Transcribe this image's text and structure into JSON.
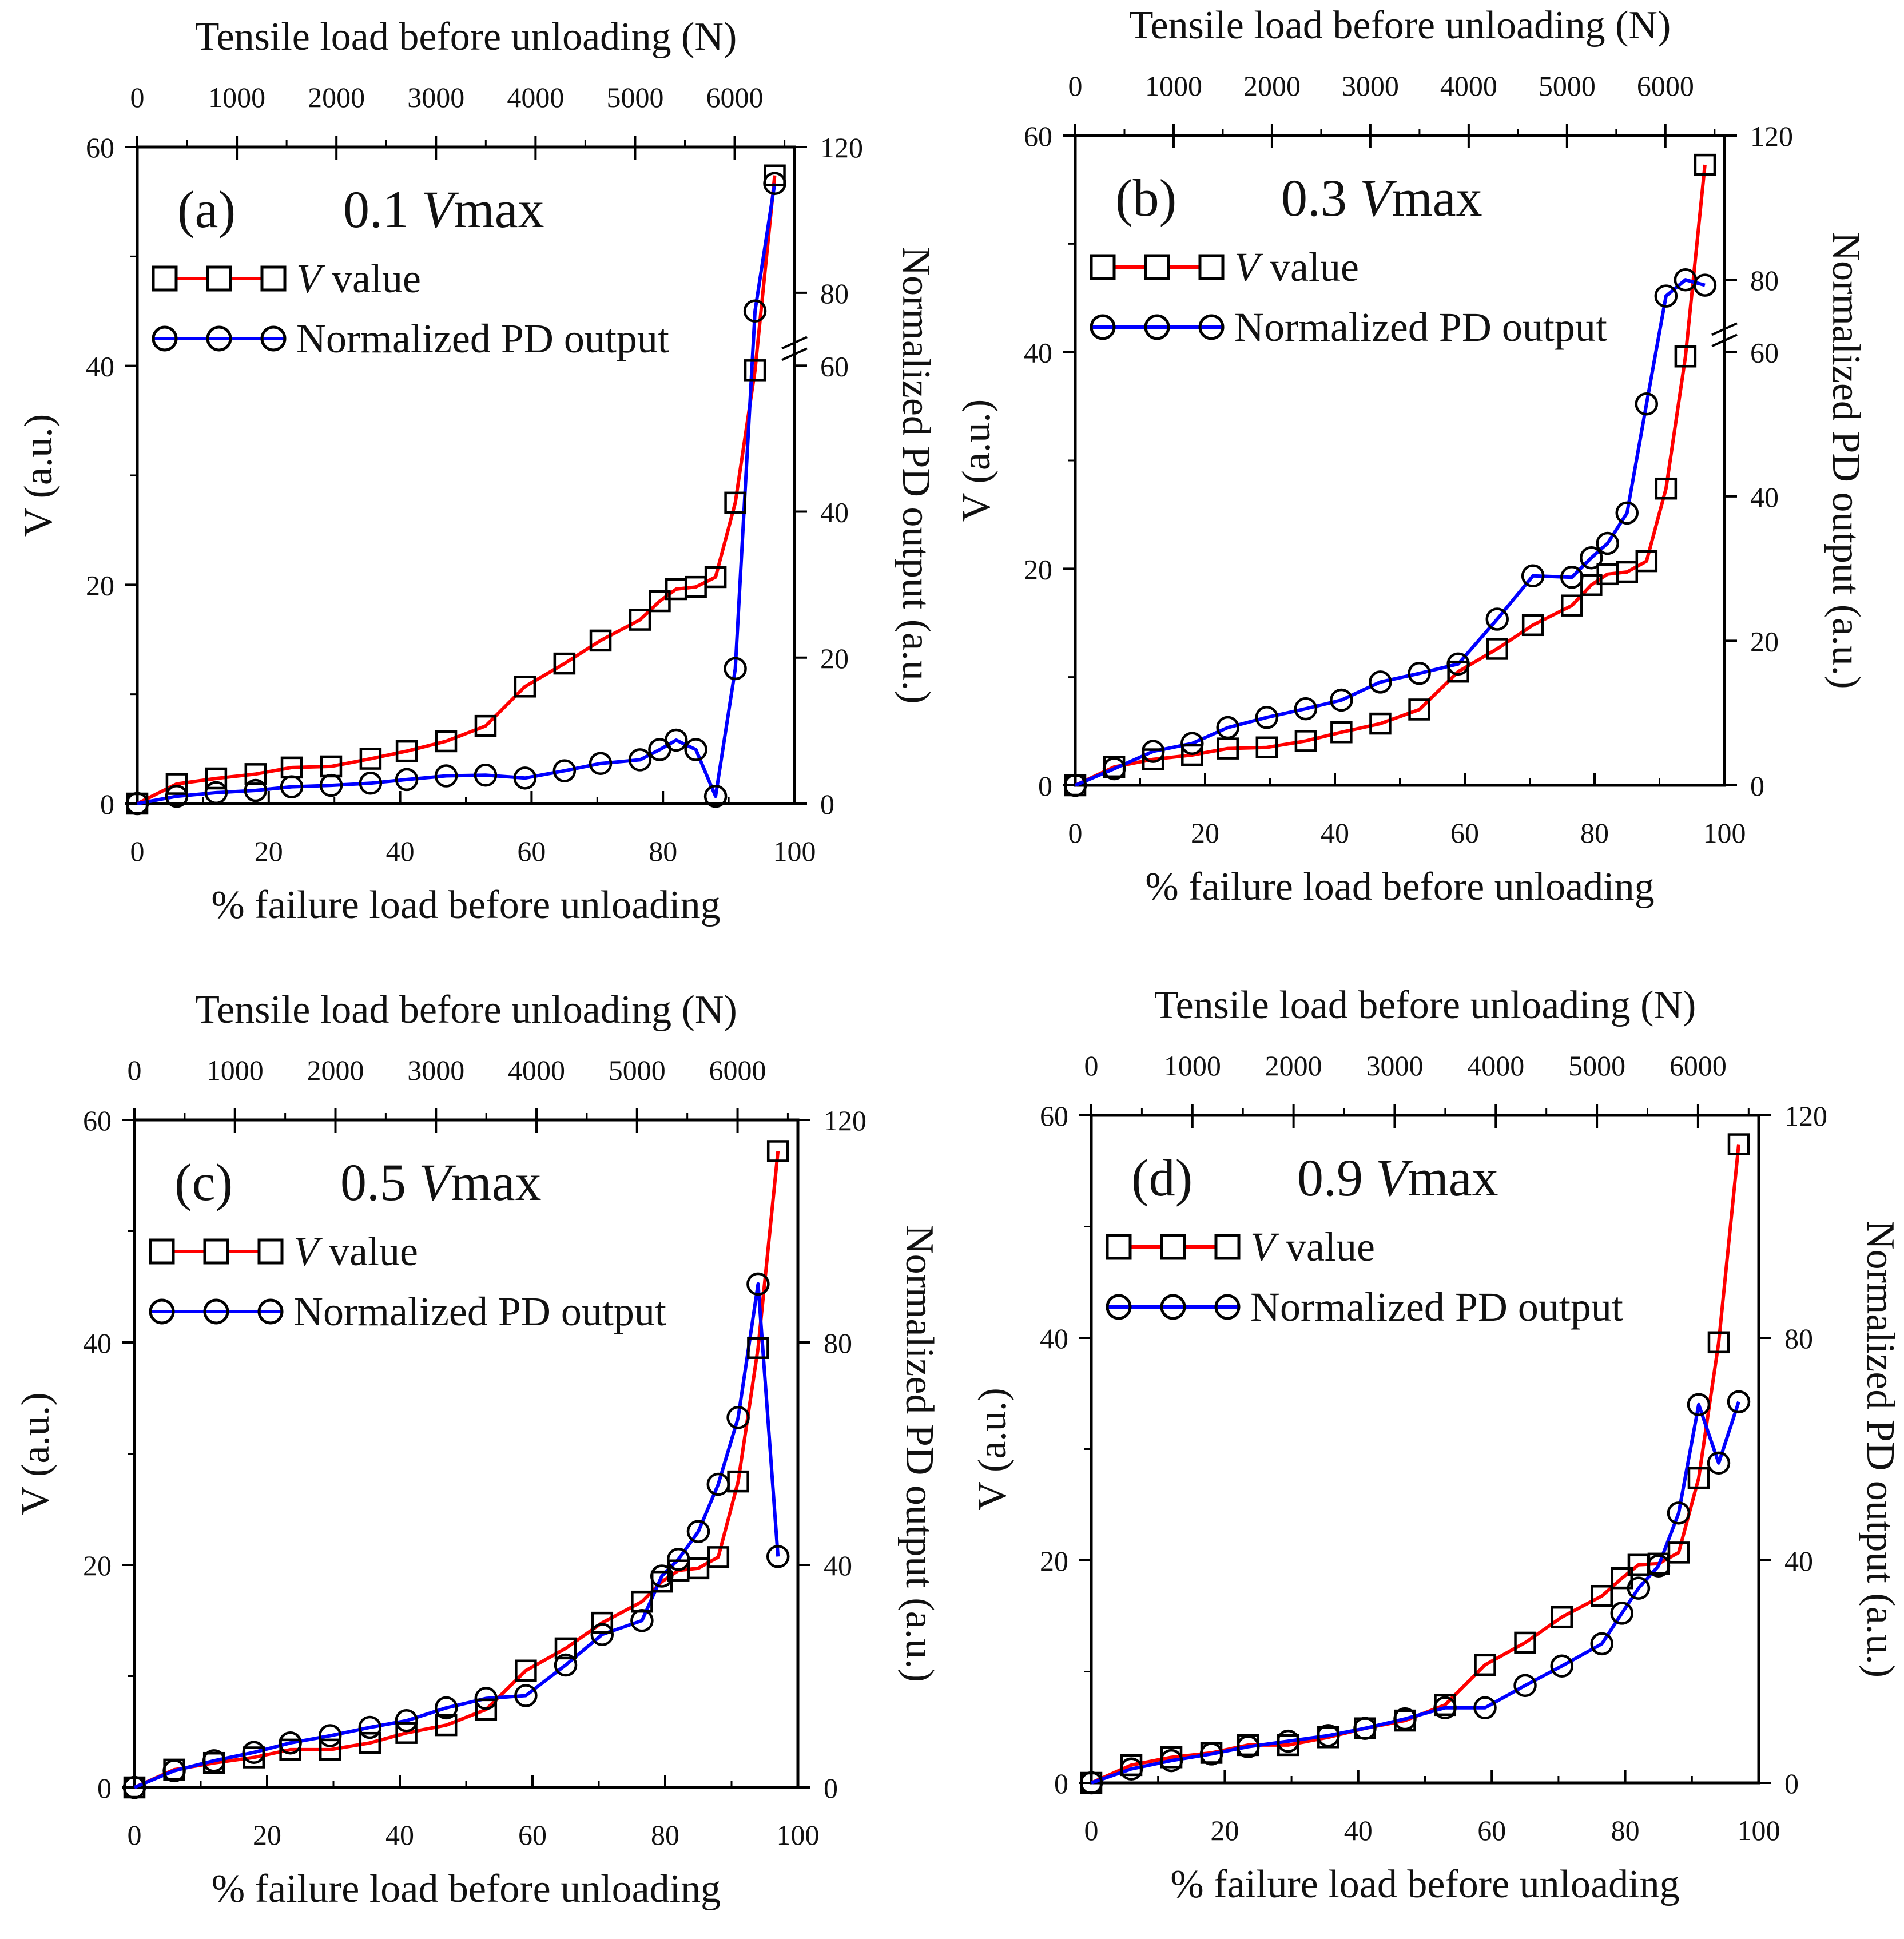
{
  "figure": {
    "name": "tensile-load-four-panel-figure"
  },
  "chart_data": [
    {
      "type": "line",
      "panel_label": "(a)",
      "condition": {
        "coef": "0.1",
        "symbol": "V",
        "sub": "max"
      },
      "top_axis": {
        "label": "Tensile load before unloading (N)",
        "ticks": [
          0,
          1000,
          2000,
          3000,
          4000,
          5000,
          6000
        ],
        "range": [
          0,
          6600
        ]
      },
      "xlabel": "% failure load before unloading",
      "ylabel": "V (a.u.)",
      "y2label": "Normalized PD output (a.u.)",
      "xlim": [
        0,
        100
      ],
      "xticks": [
        0,
        20,
        40,
        60,
        80,
        100
      ],
      "ylim": [
        0,
        60
      ],
      "yticks": [
        0,
        20,
        40,
        60
      ],
      "y2ticks": [
        0,
        20,
        40,
        60,
        80,
        120
      ],
      "y2_broken": true,
      "y2_lower_range": [
        0,
        60
      ],
      "y2_upper_range": [
        60,
        120
      ],
      "y2_break_frac": 0.667,
      "legend": {
        "items": [
          {
            "italic": "V",
            "text": " value"
          },
          {
            "italic": "",
            "text": "Normalized PD output"
          }
        ],
        "placement": "top-left"
      },
      "series": [
        {
          "name": "V value",
          "axis": "left",
          "color": "#ff0000",
          "marker": "square",
          "x": [
            0,
            6,
            12,
            18,
            23.5,
            29.5,
            35.5,
            41,
            47,
            53,
            59,
            65,
            70.5,
            76.5,
            79.5,
            82,
            85,
            88,
            91,
            94,
            97
          ],
          "y": [
            0,
            1.8,
            2.3,
            2.7,
            3.3,
            3.4,
            4.1,
            4.8,
            5.7,
            7.1,
            10.7,
            12.8,
            14.9,
            16.8,
            18.5,
            19.6,
            19.8,
            20.7,
            27.5,
            39.6,
            57.4
          ]
        },
        {
          "name": "Normalized PD output",
          "axis": "right",
          "color": "#0000ff",
          "marker": "circle",
          "x": [
            0,
            6,
            12,
            18,
            23.5,
            29.5,
            35.5,
            41,
            47,
            53,
            59,
            65,
            70.5,
            76.5,
            79.5,
            82,
            85,
            88,
            91,
            94,
            97
          ],
          "y": [
            0,
            1,
            1.5,
            1.8,
            2.3,
            2.5,
            2.8,
            3.3,
            3.8,
            3.9,
            3.5,
            4.5,
            5.5,
            6,
            7.4,
            8.7,
            7.4,
            1,
            18.5,
            75,
            110
          ]
        }
      ]
    },
    {
      "type": "line",
      "panel_label": "(b)",
      "condition": {
        "coef": "0.3",
        "symbol": "V",
        "sub": "max"
      },
      "top_axis": {
        "label": "Tensile load before unloading (N)",
        "ticks": [
          0,
          1000,
          2000,
          3000,
          4000,
          5000,
          6000
        ],
        "range": [
          0,
          6600
        ]
      },
      "xlabel": "% failure load before unloading",
      "ylabel": "V (a.u.)",
      "y2label": "Normalized PD output (a.u.)",
      "xlim": [
        0,
        100
      ],
      "xticks": [
        0,
        20,
        40,
        60,
        80,
        100
      ],
      "ylim": [
        0,
        60
      ],
      "yticks": [
        0,
        20,
        40,
        60
      ],
      "y2ticks": [
        0,
        20,
        40,
        60,
        80,
        120
      ],
      "y2_broken": true,
      "y2_lower_range": [
        0,
        60
      ],
      "y2_upper_range": [
        60,
        120
      ],
      "y2_break_frac": 0.667,
      "legend": {
        "items": [
          {
            "italic": "V",
            "text": " value"
          },
          {
            "italic": "",
            "text": "Normalized PD output"
          }
        ],
        "placement": "top-left"
      },
      "series": [
        {
          "name": "V value",
          "axis": "left",
          "color": "#ff0000",
          "marker": "square",
          "x": [
            0,
            6,
            12,
            18,
            23.5,
            29.5,
            35.5,
            41,
            47,
            53,
            59,
            65,
            70.5,
            76.5,
            79.5,
            82,
            85,
            88,
            91,
            94,
            97
          ],
          "y": [
            0,
            1.7,
            2.4,
            2.8,
            3.4,
            3.5,
            4.1,
            4.9,
            5.7,
            7,
            10.5,
            12.6,
            14.8,
            16.6,
            18.5,
            19.5,
            19.7,
            20.7,
            27.4,
            39.6,
            57.3
          ]
        },
        {
          "name": "Normalized PD output",
          "axis": "right",
          "color": "#0000ff",
          "marker": "circle",
          "x": [
            0,
            6,
            12,
            18,
            23.5,
            29.5,
            35.5,
            41,
            47,
            53,
            59,
            65,
            70.5,
            76.5,
            79.5,
            82,
            85,
            88,
            91,
            94,
            97
          ],
          "y": [
            0,
            2.3,
            4.7,
            5.8,
            8,
            9.4,
            10.6,
            11.8,
            14.3,
            15.5,
            16.8,
            23,
            29,
            28.8,
            31.5,
            33.5,
            37.7,
            52.8,
            75.5,
            80,
            78.5
          ]
        }
      ]
    },
    {
      "type": "line",
      "panel_label": "(c)",
      "condition": {
        "coef": "0.5",
        "symbol": "V",
        "sub": "max"
      },
      "top_axis": {
        "label": "Tensile load before unloading (N)",
        "ticks": [
          0,
          1000,
          2000,
          3000,
          4000,
          5000,
          6000
        ],
        "range": [
          0,
          6600
        ]
      },
      "xlabel": "% failure load before unloading",
      "ylabel": "V (a.u.)",
      "y2label": "Normalized PD output (a.u.)",
      "xlim": [
        0,
        100
      ],
      "xticks": [
        0,
        20,
        40,
        60,
        80,
        100
      ],
      "ylim": [
        0,
        60
      ],
      "yticks": [
        0,
        20,
        40,
        60
      ],
      "y2ticks": [
        0,
        40,
        80,
        120
      ],
      "y2_broken": false,
      "y2lim": [
        0,
        120
      ],
      "legend": {
        "items": [
          {
            "italic": "V",
            "text": " value"
          },
          {
            "italic": "",
            "text": "Normalized PD output"
          }
        ],
        "placement": "top-left"
      },
      "series": [
        {
          "name": "V value",
          "axis": "left",
          "color": "#ff0000",
          "marker": "square",
          "x": [
            0,
            6,
            12,
            18,
            23.5,
            29.5,
            35.5,
            41,
            47,
            53,
            59,
            65,
            70.5,
            76.5,
            79.5,
            82,
            85,
            88,
            91,
            94,
            97
          ],
          "y": [
            0,
            1.6,
            2.2,
            2.7,
            3.4,
            3.4,
            4,
            4.9,
            5.6,
            7,
            10.5,
            12.5,
            14.8,
            16.7,
            18.5,
            19.5,
            19.7,
            20.7,
            27.5,
            39.5,
            57.2
          ]
        },
        {
          "name": "Normalized PD output",
          "axis": "right",
          "color": "#0000ff",
          "marker": "circle",
          "x": [
            0,
            6,
            12,
            18,
            23.5,
            29.5,
            35.5,
            41,
            47,
            53,
            59,
            65,
            70.5,
            76.5,
            79.5,
            82,
            85,
            88,
            91,
            94,
            97
          ],
          "y": [
            0,
            3,
            4.8,
            6.3,
            8,
            9.3,
            10.8,
            12,
            14.3,
            16,
            16.5,
            22,
            27.5,
            30,
            38,
            41,
            46,
            54.5,
            66.5,
            90.5,
            41.5
          ]
        }
      ]
    },
    {
      "type": "line",
      "panel_label": "(d)",
      "condition": {
        "coef": "0.9",
        "symbol": "V",
        "sub": "max"
      },
      "top_axis": {
        "label": "Tensile load before unloading (N)",
        "ticks": [
          0,
          1000,
          2000,
          3000,
          4000,
          5000,
          6000
        ],
        "range": [
          0,
          6600
        ]
      },
      "xlabel": "% failure load before unloading",
      "ylabel": "V (a.u.)",
      "y2label": "Normalized PD output (a.u.)",
      "xlim": [
        0,
        100
      ],
      "xticks": [
        0,
        20,
        40,
        60,
        80,
        100
      ],
      "ylim": [
        0,
        60
      ],
      "yticks": [
        0,
        20,
        40,
        60
      ],
      "y2ticks": [
        0,
        40,
        80,
        120
      ],
      "y2_broken": false,
      "y2lim": [
        0,
        120
      ],
      "legend": {
        "items": [
          {
            "italic": "V",
            "text": " value"
          },
          {
            "italic": "",
            "text": "Normalized PD output"
          }
        ],
        "placement": "top-left"
      },
      "series": [
        {
          "name": "V value",
          "axis": "left",
          "color": "#ff0000",
          "marker": "square",
          "x": [
            0,
            6,
            12,
            18,
            23.5,
            29.5,
            35.5,
            41,
            47,
            53,
            59,
            65,
            70.5,
            76.5,
            79.5,
            82,
            85,
            88,
            91,
            94,
            97
          ],
          "y": [
            0,
            1.6,
            2.3,
            2.7,
            3.4,
            3.4,
            4.1,
            4.9,
            5.6,
            7,
            10.6,
            12.6,
            14.9,
            16.8,
            18.4,
            19.6,
            19.7,
            20.7,
            27.4,
            39.6,
            57.4
          ]
        },
        {
          "name": "Normalized PD output",
          "axis": "right",
          "color": "#0000ff",
          "marker": "circle",
          "x": [
            0,
            6,
            12,
            18,
            23.5,
            29.5,
            35.5,
            41,
            47,
            53,
            59,
            65,
            70.5,
            76.5,
            79.5,
            82,
            85,
            88,
            91,
            94,
            97
          ],
          "y": [
            0,
            2.5,
            4,
            5.2,
            6.5,
            7.5,
            8.5,
            9.8,
            11.5,
            13.5,
            13.5,
            17.5,
            21,
            25,
            30.5,
            35,
            39,
            48.5,
            68,
            57.5,
            68.5
          ]
        }
      ]
    }
  ]
}
